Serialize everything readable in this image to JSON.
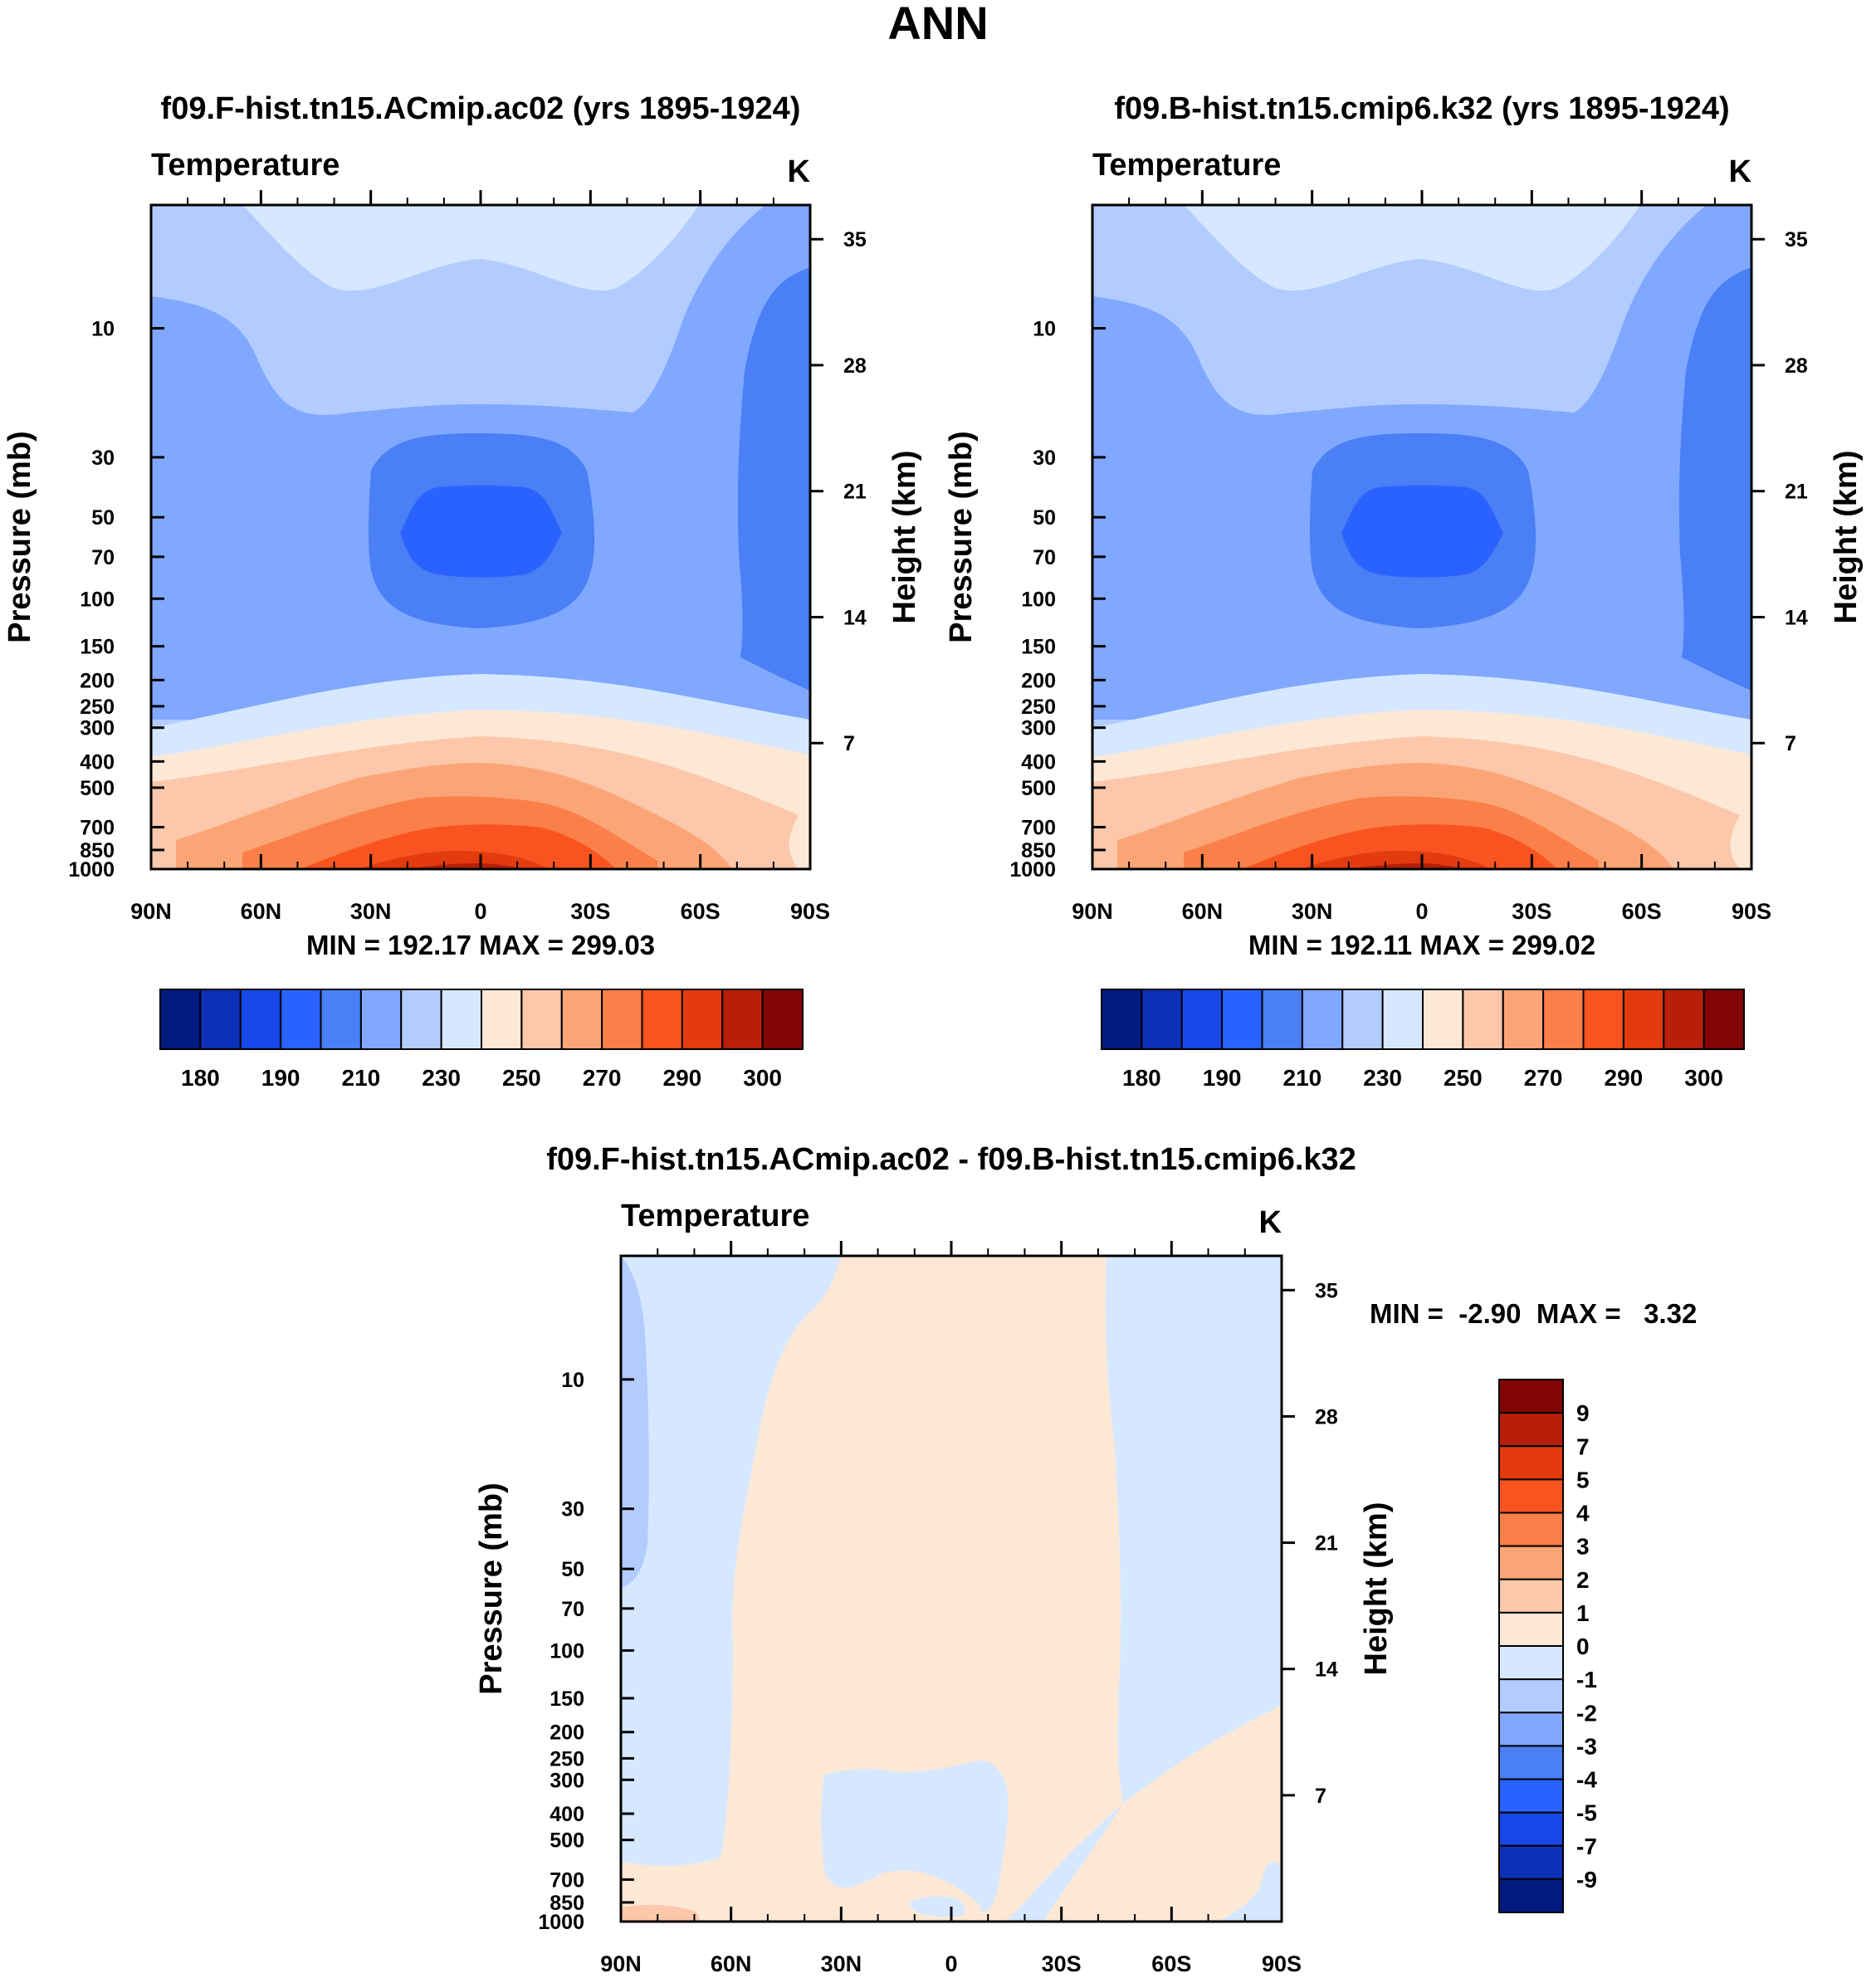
{
  "figure": {
    "season": "ANN"
  },
  "chart_data": [
    {
      "type": "heatmap",
      "title": "f09.F-hist.tn15.ACmip.ac02 (yrs 1895-1924)",
      "variable": "Temperature",
      "units": "K",
      "ylabel": "Pressure (mb)",
      "ylabel_right": "Height (km)",
      "x_ticks": [
        "90N",
        "60N",
        "30N",
        "0",
        "30S",
        "60S",
        "90S"
      ],
      "pressure_ticks": [
        10,
        30,
        50,
        70,
        100,
        150,
        200,
        250,
        300,
        400,
        500,
        700,
        850,
        1000
      ],
      "height_ticks": [
        7,
        14,
        21,
        28,
        35
      ],
      "stats": "MIN = 192.17  MAX = 299.03",
      "colorbar_labels": [
        "180",
        "190",
        "210",
        "230",
        "250",
        "270",
        "290",
        "300"
      ],
      "colors": [
        "#001a80",
        "#0d30b8",
        "#1747e6",
        "#2a62ff",
        "#4a7ff5",
        "#80a8ff",
        "#b3ccff",
        "#d6e8ff",
        "#fde8d6",
        "#fcc7aa",
        "#fba577",
        "#fb7f48",
        "#f9541f",
        "#e33a0e",
        "#b81f0a",
        "#820505"
      ]
    },
    {
      "type": "heatmap",
      "title": "f09.B-hist.tn15.cmip6.k32 (yrs 1895-1924)",
      "variable": "Temperature",
      "units": "K",
      "ylabel": "Pressure (mb)",
      "ylabel_right": "Height (km)",
      "x_ticks": [
        "90N",
        "60N",
        "30N",
        "0",
        "30S",
        "60S",
        "90S"
      ],
      "pressure_ticks": [
        10,
        30,
        50,
        70,
        100,
        150,
        200,
        250,
        300,
        400,
        500,
        700,
        850,
        1000
      ],
      "height_ticks": [
        7,
        14,
        21,
        28,
        35
      ],
      "stats": "MIN = 192.11  MAX = 299.02",
      "colorbar_labels": [
        "180",
        "190",
        "210",
        "230",
        "250",
        "270",
        "290",
        "300"
      ],
      "colors": [
        "#001a80",
        "#0d30b8",
        "#1747e6",
        "#2a62ff",
        "#4a7ff5",
        "#80a8ff",
        "#b3ccff",
        "#d6e8ff",
        "#fde8d6",
        "#fcc7aa",
        "#fba577",
        "#fb7f48",
        "#f9541f",
        "#e33a0e",
        "#b81f0a",
        "#820505"
      ]
    },
    {
      "type": "heatmap",
      "title": "f09.F-hist.tn15.ACmip.ac02 - f09.B-hist.tn15.cmip6.k32",
      "variable": "Temperature",
      "units": "K",
      "ylabel": "Pressure (mb)",
      "ylabel_right": "Height (km)",
      "x_ticks": [
        "90N",
        "60N",
        "30N",
        "0",
        "30S",
        "60S",
        "90S"
      ],
      "pressure_ticks": [
        10,
        30,
        50,
        70,
        100,
        150,
        200,
        250,
        300,
        400,
        500,
        700,
        850,
        1000
      ],
      "height_ticks": [
        7,
        14,
        21,
        28,
        35
      ],
      "stats": "MIN =  -2.90  MAX =   3.32",
      "colorbar_labels": [
        "9",
        "7",
        "5",
        "4",
        "3",
        "2",
        "1",
        "0",
        "-1",
        "-2",
        "-3",
        "-4",
        "-5",
        "-7",
        "-9"
      ],
      "colors": [
        "#820505",
        "#b81f0a",
        "#e33a0e",
        "#f9541f",
        "#fb7f48",
        "#fba577",
        "#fcc7aa",
        "#fde8d6",
        "#d6e8ff",
        "#b3ccff",
        "#80a8ff",
        "#4a7ff5",
        "#2a62ff",
        "#1747e6",
        "#0d30b8",
        "#001a80"
      ]
    }
  ]
}
